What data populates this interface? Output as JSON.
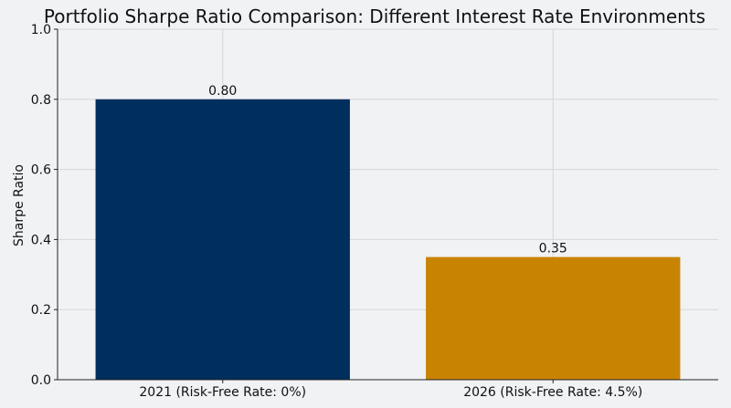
{
  "chart_data": {
    "type": "bar",
    "title": "Portfolio Sharpe Ratio Comparison: Different Interest Rate Environments",
    "xlabel": "",
    "ylabel": "Sharpe Ratio",
    "ylim": [
      0,
      1.0
    ],
    "yticks": [
      0.0,
      0.2,
      0.4,
      0.6,
      0.8,
      1.0
    ],
    "ytick_labels": [
      "0.0",
      "0.2",
      "0.4",
      "0.6",
      "0.8",
      "1.0"
    ],
    "categories": [
      "2021 (Risk-Free Rate: 0%)",
      "2026 (Risk-Free Rate: 4.5%)"
    ],
    "values": [
      0.8,
      0.35
    ],
    "data_labels": [
      "0.80",
      "0.35"
    ],
    "bar_colors": [
      "#002f5e",
      "#c98303"
    ],
    "grid": true,
    "background_color": "#f0f2f4",
    "grid_color": "#d4d7da",
    "axis_color": "#222222"
  }
}
